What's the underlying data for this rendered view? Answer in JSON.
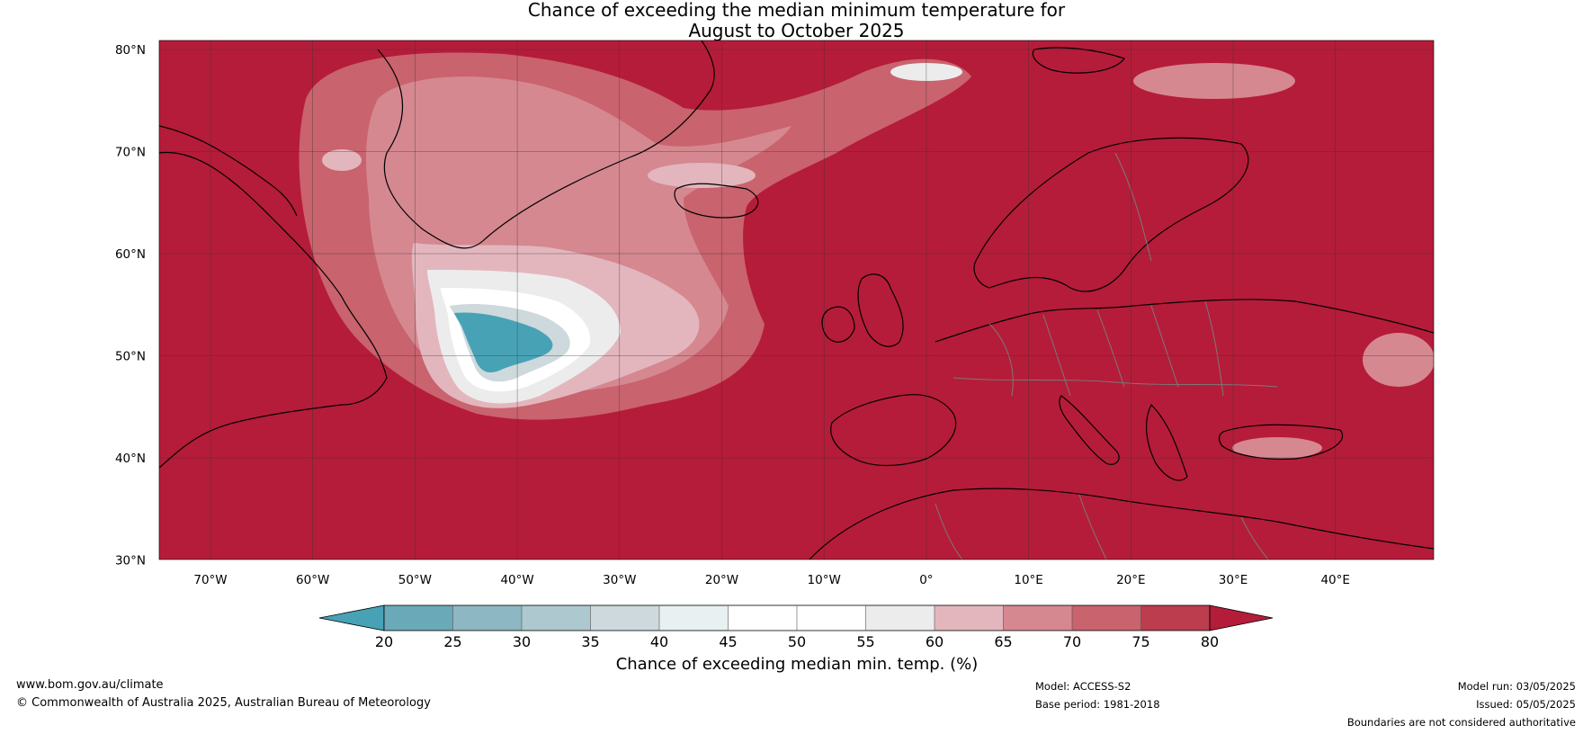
{
  "title_line1": "Chance of exceeding the median minimum temperature for",
  "title_line2": "August to October 2025",
  "map": {
    "lat_ticks": [
      "80°N",
      "70°N",
      "60°N",
      "50°N",
      "40°N",
      "30°N"
    ],
    "lon_ticks": [
      "70°W",
      "60°W",
      "50°W",
      "40°W",
      "30°W",
      "20°W",
      "10°W",
      "0°",
      "10°E",
      "20°E",
      "30°E",
      "40°E"
    ],
    "colors": {
      "background": "#b51c39",
      "land_outline": "#000000",
      "borders": "#7a7a7a",
      "grid": "#333333"
    }
  },
  "colorbar": {
    "ticks": [
      "20",
      "25",
      "30",
      "35",
      "40",
      "45",
      "50",
      "55",
      "60",
      "65",
      "70",
      "75",
      "80"
    ],
    "colors": [
      "#48a2b5",
      "#6aa9b8",
      "#8db7c3",
      "#aec8cf",
      "#cdd9dc",
      "#e8f0f1",
      "#ffffff",
      "#ffffff",
      "#ececed",
      "#e3b6bd",
      "#d58890",
      "#c9636e",
      "#bc3d4e",
      "#b51c39"
    ],
    "title": "Chance of exceeding median min. temp. (%)"
  },
  "footer": {
    "website": "www.bom.gov.au/climate",
    "copyright": "© Commonwealth of Australia 2025, Australian Bureau of Meteorology",
    "model": "Model: ACCESS-S2",
    "base_period": "Base period: 1981-2018",
    "model_run": "Model run: 03/05/2025",
    "issued": "Issued: 05/05/2025",
    "disclaimer": "Boundaries are not considered authoritative"
  }
}
